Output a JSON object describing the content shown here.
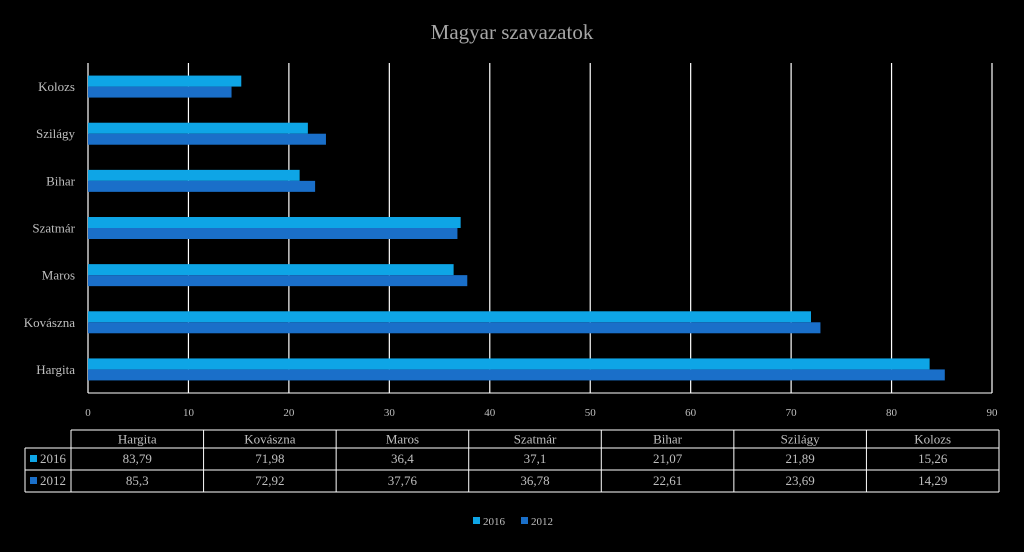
{
  "chart_data": {
    "type": "bar",
    "orientation": "horizontal",
    "title": "Magyar szavazatok",
    "categories": [
      "Hargita",
      "Kovászna",
      "Maros",
      "Szatmár",
      "Bihar",
      "Szilágy",
      "Kolozs"
    ],
    "series": [
      {
        "name": "2016",
        "color": "#0ea5e6",
        "values": [
          83.79,
          71.98,
          36.4,
          37.1,
          21.07,
          21.89,
          15.26
        ],
        "labels": [
          "83,79",
          "71,98",
          "36,4",
          "37,1",
          "21,07",
          "21,89",
          "15,26"
        ]
      },
      {
        "name": "2012",
        "color": "#1a6fc9",
        "values": [
          85.3,
          72.92,
          37.76,
          36.78,
          22.61,
          23.69,
          14.29
        ],
        "labels": [
          "85,3",
          "72,92",
          "37,76",
          "36,78",
          "22,61",
          "23,69",
          "14,29"
        ]
      }
    ],
    "xlim": [
      0,
      90
    ],
    "xticks": [
      0,
      10,
      20,
      30,
      40,
      50,
      60,
      70,
      80,
      90
    ],
    "grid": true,
    "data_table": true,
    "legend_position": "bottom"
  }
}
